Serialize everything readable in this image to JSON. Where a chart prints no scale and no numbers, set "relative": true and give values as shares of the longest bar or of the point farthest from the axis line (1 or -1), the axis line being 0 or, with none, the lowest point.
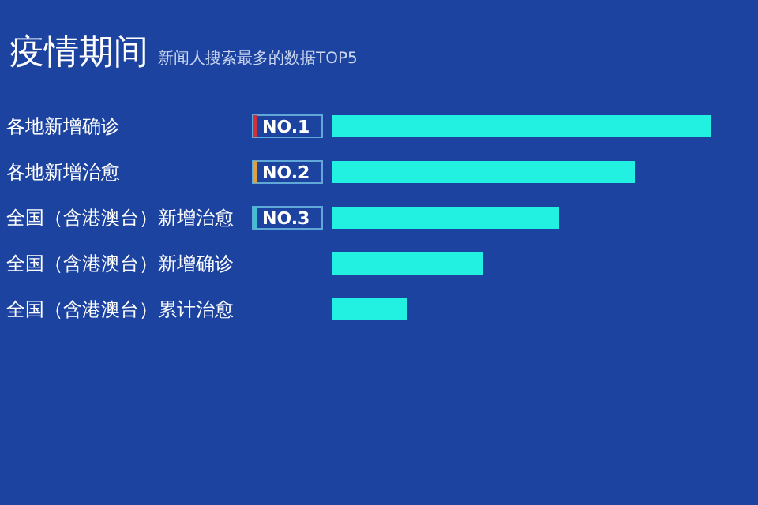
{
  "chart_data": {
    "type": "bar",
    "orientation": "horizontal",
    "relative": true,
    "title": "疫情期间",
    "subtitle": "新闻人搜索最多的数据TOP5",
    "categories": [
      "各地新增确诊",
      "各地新增治愈",
      "全国（含港澳台）新增治愈",
      "全国（含港澳台）新增确诊",
      "全国（含港澳台）累计治愈"
    ],
    "values": [
      1,
      0.8,
      0.6,
      0.4,
      0.2
    ],
    "color": "#22f0e0",
    "annotations": [
      "NO.1",
      "NO.2",
      "NO.3"
    ]
  }
}
